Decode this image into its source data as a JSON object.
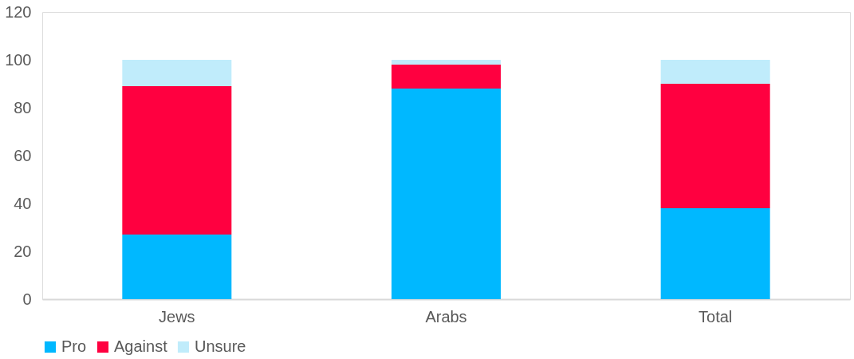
{
  "chart_data": {
    "type": "bar",
    "stacked": true,
    "categories": [
      "Jews",
      "Arabs",
      "Total"
    ],
    "series": [
      {
        "name": "Pro",
        "color": "#00b8ff",
        "values": [
          27,
          88,
          38
        ]
      },
      {
        "name": "Against",
        "color": "#ff0040",
        "values": [
          62,
          10,
          52
        ]
      },
      {
        "name": "Unsure",
        "color": "#c0ecfb",
        "values": [
          11,
          2,
          10
        ]
      }
    ],
    "ylim": [
      0,
      120
    ],
    "yticks": [
      0,
      20,
      40,
      60,
      80,
      100,
      120
    ],
    "grid": false,
    "legend": "bottom"
  }
}
